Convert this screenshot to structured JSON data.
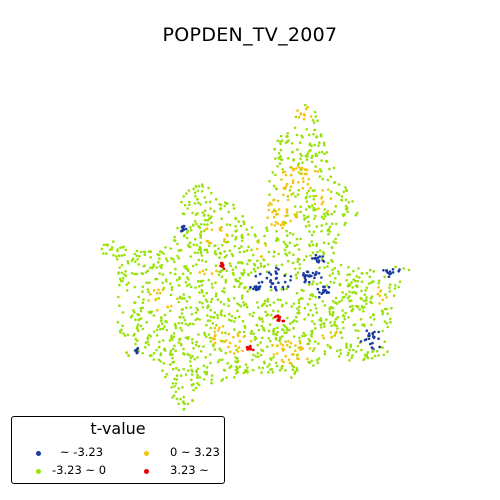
{
  "title": "POPDEN_TV_2007",
  "legend": {
    "title": "t-value",
    "classes": [
      {
        "label": "~ -3.23",
        "color": "#1a3aa0"
      },
      {
        "label": "-3.23 ~ 0",
        "color": "#97e209"
      },
      {
        "label": "0 ~ 3.23",
        "color": "#f2c40a"
      },
      {
        "label": "3.23 ~",
        "color": "#e60000"
      }
    ]
  },
  "map_data": {
    "type": "point-map",
    "variable": "POPDEN_TV_2007",
    "class_breaks": [
      -3.23,
      0,
      3.23
    ]
  }
}
